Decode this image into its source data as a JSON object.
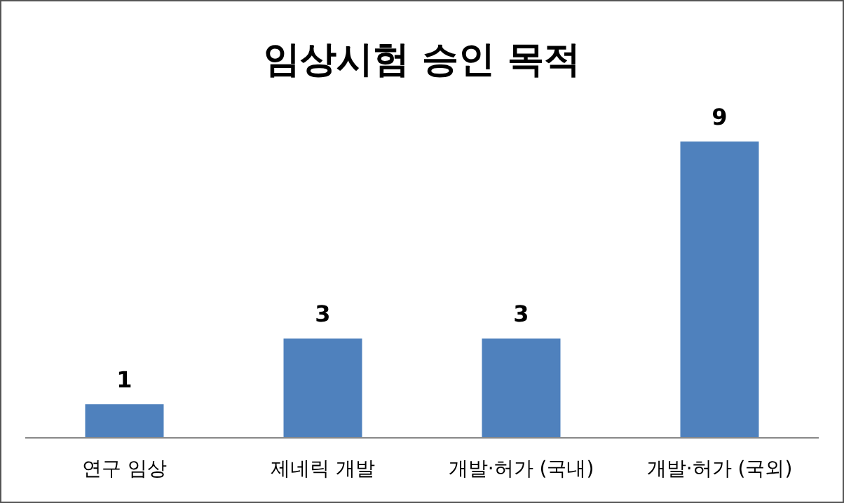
{
  "chart_data": {
    "type": "bar",
    "title": "임상시험 승인 목적",
    "categories": [
      "연구 임상",
      "제네릭 개발",
      "개발·허가 (국내)",
      "개발·허가 (국외)"
    ],
    "values": [
      1,
      3,
      3,
      9
    ],
    "color": "#4f81bd",
    "data_labels": true
  }
}
